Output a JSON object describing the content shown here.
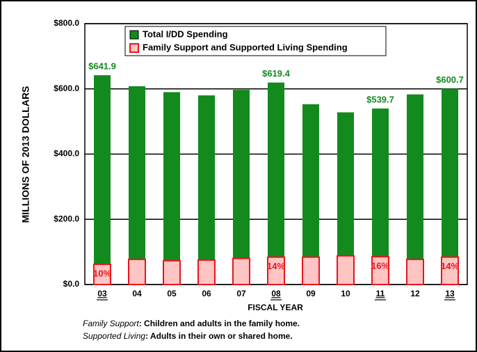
{
  "chart_data": {
    "type": "bar",
    "y_axis_label": "MILLIONS OF 2013 DOLLARS",
    "x_axis_label": "FISCAL YEAR",
    "categories": [
      "03",
      "04",
      "05",
      "06",
      "07",
      "08",
      "09",
      "10",
      "11",
      "12",
      "13"
    ],
    "highlighted": [
      true,
      false,
      false,
      false,
      false,
      true,
      false,
      false,
      true,
      false,
      true
    ],
    "series": [
      {
        "name": "Total I/DD Spending",
        "color": "#138a1e",
        "values": [
          641.9,
          608,
          590,
          580,
          597,
          619.4,
          553,
          528,
          539.7,
          583,
          600.7
        ],
        "value_labels": [
          "$641.9",
          null,
          null,
          null,
          null,
          "$619.4",
          null,
          null,
          "$539.7",
          null,
          "$600.7"
        ]
      },
      {
        "name": "Family Support and Supported Living Spending",
        "color": "#ffc4c4",
        "edge": "#e8141b",
        "values": [
          62,
          77,
          73,
          75,
          80,
          84,
          84,
          88,
          85,
          77,
          84
        ],
        "value_labels": [
          "10%",
          null,
          null,
          null,
          null,
          "14%",
          null,
          null,
          "16%",
          null,
          "14%"
        ]
      }
    ],
    "ylim": [
      0,
      800
    ],
    "yticks": [
      {
        "value": 0,
        "label": "$0.0"
      },
      {
        "value": 200,
        "label": "$200.0"
      },
      {
        "value": 400,
        "label": "$400.0"
      },
      {
        "value": 600,
        "label": "$600.0"
      },
      {
        "value": 800,
        "label": "$800.0"
      }
    ],
    "grid": true,
    "notes": [
      {
        "term": "Family Support",
        "text": ": Children and adults in the family home."
      },
      {
        "term": "Supported Living",
        "text": ": Adults in their own or shared home."
      }
    ]
  }
}
